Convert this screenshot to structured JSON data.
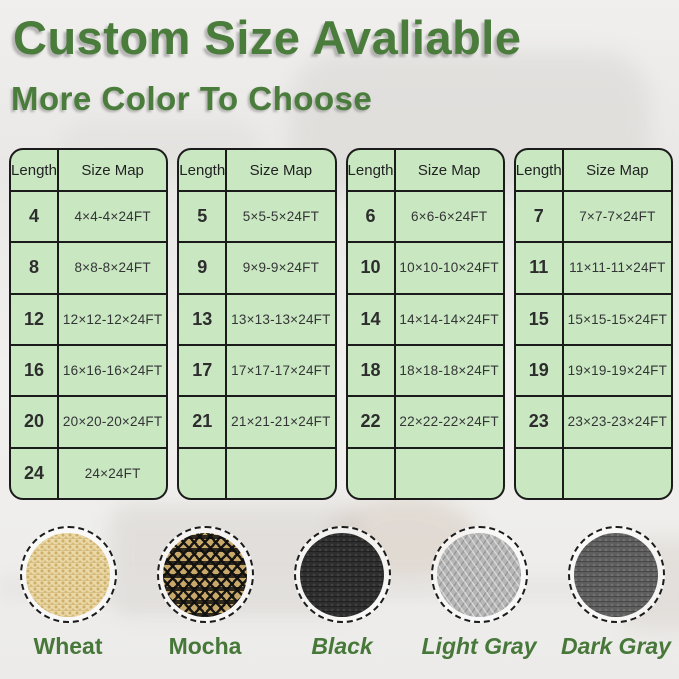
{
  "header": {
    "title": "Custom Size Avaliable",
    "subtitle": "More Color To Choose",
    "title_color": "#4a7c3c"
  },
  "size_tables": {
    "columns": [
      "Length",
      "Size Map"
    ],
    "cell_bg": "#c9e8c2",
    "border_color": "#1b1b1b",
    "tables": [
      {
        "rows": [
          [
            "4",
            "4×4-4×24FT"
          ],
          [
            "8",
            "8×8-8×24FT"
          ],
          [
            "12",
            "12×12-12×24FT"
          ],
          [
            "16",
            "16×16-16×24FT"
          ],
          [
            "20",
            "20×20-20×24FT"
          ],
          [
            "24",
            "24×24FT"
          ]
        ]
      },
      {
        "rows": [
          [
            "5",
            "5×5-5×24FT"
          ],
          [
            "9",
            "9×9-9×24FT"
          ],
          [
            "13",
            "13×13-13×24FT"
          ],
          [
            "17",
            "17×17-17×24FT"
          ],
          [
            "21",
            "21×21-21×24FT"
          ],
          [
            "",
            ""
          ]
        ]
      },
      {
        "rows": [
          [
            "6",
            "6×6-6×24FT"
          ],
          [
            "10",
            "10×10-10×24FT"
          ],
          [
            "14",
            "14×14-14×24FT"
          ],
          [
            "18",
            "18×18-18×24FT"
          ],
          [
            "22",
            "22×22-22×24FT"
          ],
          [
            "",
            ""
          ]
        ]
      },
      {
        "rows": [
          [
            "7",
            "7×7-7×24FT"
          ],
          [
            "11",
            "11×11-11×24FT"
          ],
          [
            "15",
            "15×15-15×24FT"
          ],
          [
            "19",
            "19×19-19×24FT"
          ],
          [
            "23",
            "23×23-23×24FT"
          ],
          [
            "",
            ""
          ]
        ]
      }
    ]
  },
  "colors": {
    "label_color": "#47783a",
    "items": [
      {
        "name": "Wheat",
        "swatch": "wheat",
        "hex": "#e0c68d",
        "italic": false
      },
      {
        "name": "Mocha",
        "swatch": "mocha",
        "hex": "#8a6f3e",
        "italic": false
      },
      {
        "name": "Black",
        "swatch": "black",
        "hex": "#2e2e2e",
        "italic": true
      },
      {
        "name": "Light Gray",
        "swatch": "light-gray",
        "hex": "#b6b6b6",
        "italic": true
      },
      {
        "name": "Dark Gray",
        "swatch": "dark-gray",
        "hex": "#5e5e5e",
        "italic": true
      }
    ]
  }
}
